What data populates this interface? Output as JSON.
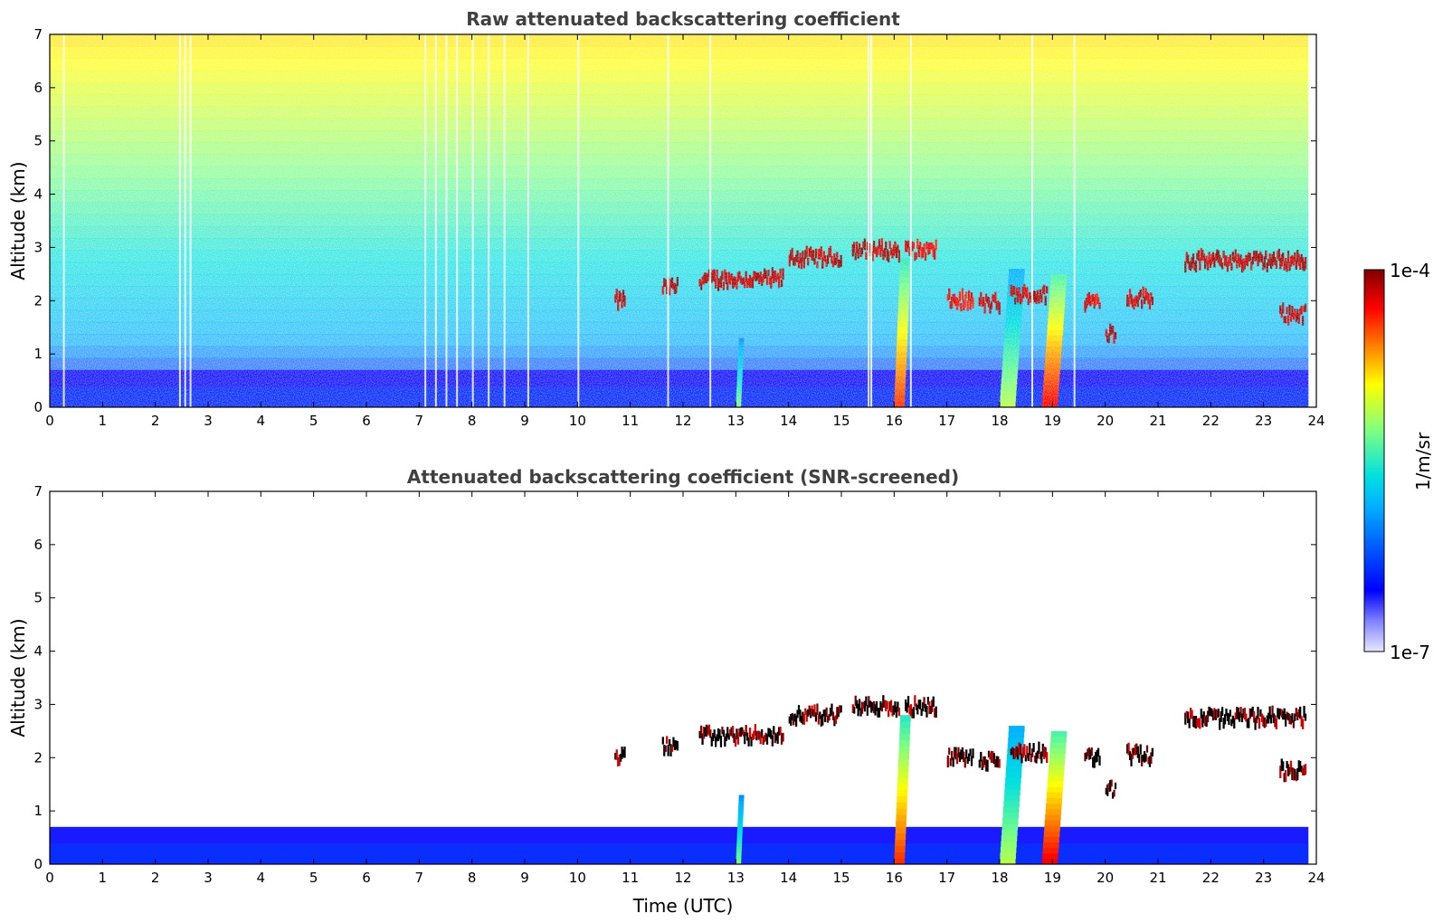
{
  "chart_data": [
    {
      "type": "heatmap",
      "title": "Raw attenuated backscattering coefficient",
      "xlabel": "",
      "ylabel": "Altitude (km)",
      "xlim": [
        0,
        24
      ],
      "ylim": [
        0,
        7
      ],
      "xticks": [
        "0",
        "1",
        "2",
        "3",
        "4",
        "5",
        "6",
        "7",
        "8",
        "9",
        "10",
        "11",
        "12",
        "13",
        "14",
        "15",
        "16",
        "17",
        "18",
        "19",
        "20",
        "21",
        "22",
        "23",
        "24"
      ],
      "yticks": [
        "0",
        "1",
        "2",
        "3",
        "4",
        "5",
        "6",
        "7"
      ],
      "screened": false,
      "features": {
        "boundary_layer": [
          {
            "t0": 0.0,
            "t1": 23.85,
            "top_km": 0.7,
            "level": 0.2
          }
        ],
        "cloud_layers": [
          {
            "t0": 10.7,
            "t1": 10.9,
            "alt_km": 2.0,
            "level": 1.0
          },
          {
            "t0": 11.6,
            "t1": 11.9,
            "alt_km": 2.25,
            "level": 1.0
          },
          {
            "t0": 12.3,
            "t1": 13.9,
            "alt_km": 2.4,
            "level": 1.0
          },
          {
            "t0": 14.0,
            "t1": 15.0,
            "alt_km": 2.8,
            "level": 1.0
          },
          {
            "t0": 15.2,
            "t1": 16.1,
            "alt_km": 2.95,
            "level": 1.0
          },
          {
            "t0": 16.2,
            "t1": 16.8,
            "alt_km": 2.95,
            "level": 0.95
          },
          {
            "t0": 17.0,
            "t1": 17.5,
            "alt_km": 2.0,
            "level": 0.95
          },
          {
            "t0": 17.6,
            "t1": 18.0,
            "alt_km": 1.95,
            "level": 1.0
          },
          {
            "t0": 18.2,
            "t1": 18.9,
            "alt_km": 2.1,
            "level": 1.0
          },
          {
            "t0": 19.6,
            "t1": 19.9,
            "alt_km": 2.0,
            "level": 0.95
          },
          {
            "t0": 20.0,
            "t1": 20.2,
            "alt_km": 1.4,
            "level": 1.0
          },
          {
            "t0": 20.4,
            "t1": 20.9,
            "alt_km": 2.05,
            "level": 1.0
          },
          {
            "t0": 21.5,
            "t1": 23.8,
            "alt_km": 2.75,
            "level": 1.0
          },
          {
            "t0": 23.3,
            "t1": 23.8,
            "alt_km": 1.75,
            "level": 1.0
          }
        ],
        "precipitation": [
          {
            "t0": 13.0,
            "t1": 13.1,
            "top_km": 1.3,
            "level": 0.55
          },
          {
            "t0": 16.0,
            "t1": 16.2,
            "top_km": 2.8,
            "level": 0.85
          },
          {
            "t0": 18.0,
            "t1": 18.3,
            "top_km": 2.6,
            "level": 0.6
          },
          {
            "t0": 18.8,
            "t1": 19.1,
            "top_km": 2.5,
            "level": 0.9
          }
        ]
      }
    },
    {
      "type": "heatmap",
      "title": "Attenuated backscattering coefficient (SNR-screened)",
      "xlabel": "Time (UTC)",
      "ylabel": "Altitude (km)",
      "xlim": [
        0,
        24
      ],
      "ylim": [
        0,
        7
      ],
      "xticks": [
        "0",
        "1",
        "2",
        "3",
        "4",
        "5",
        "6",
        "7",
        "8",
        "9",
        "10",
        "11",
        "12",
        "13",
        "14",
        "15",
        "16",
        "17",
        "18",
        "19",
        "20",
        "21",
        "22",
        "23",
        "24"
      ],
      "yticks": [
        "0",
        "1",
        "2",
        "3",
        "4",
        "5",
        "6",
        "7"
      ],
      "screened": true
    }
  ],
  "colorbar": {
    "label": "1/m/sr",
    "max_label": "1e-4",
    "min_label": "1e-7",
    "colors": [
      "#e8e8ff",
      "#8080ff",
      "#0000ff",
      "#00b0ff",
      "#00e0e0",
      "#80ff80",
      "#ffff00",
      "#ff8000",
      "#ff0000",
      "#800000"
    ]
  }
}
